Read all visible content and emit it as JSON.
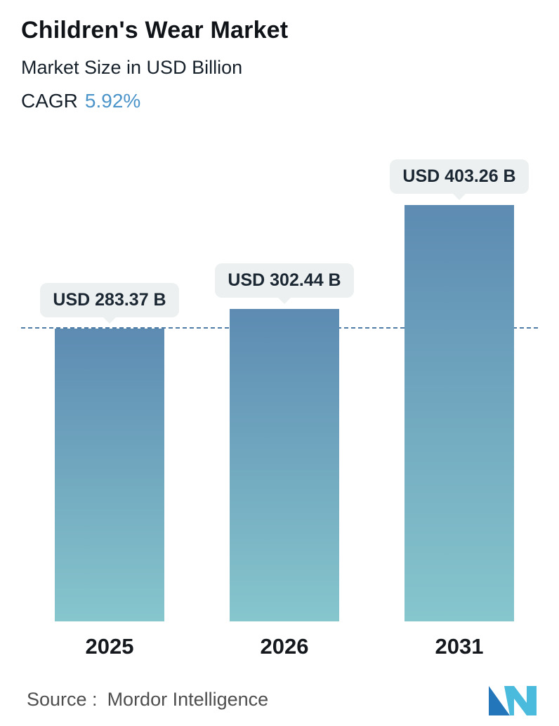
{
  "header": {
    "title": "Children's Wear Market",
    "subtitle": "Market Size in USD Billion",
    "cagr_label": "CAGR",
    "cagr_value": "5.92%"
  },
  "chart_data": {
    "type": "bar",
    "categories": [
      "2025",
      "2026",
      "2031"
    ],
    "values": [
      283.37,
      302.44,
      403.26
    ],
    "value_labels": [
      "USD 283.37 B",
      "USD 302.44 B",
      "USD 403.26 B"
    ],
    "unit": "USD Billion",
    "title": "Children's Wear Market",
    "subtitle": "Market Size in USD Billion",
    "ylim": [
      0,
      403.26
    ],
    "grid": false,
    "legend": "none",
    "reference_line_value": 283.37
  },
  "footer": {
    "source_label": "Source :",
    "source_value": "Mordor Intelligence"
  },
  "colors": {
    "bar_gradient_top": "#5d8bb2",
    "bar_gradient_bottom": "#86c6cd",
    "reference_line": "#4f7ca6",
    "cagr_value": "#4b94c9",
    "badge_background": "#edf0f0",
    "badge_text": "#1b2733",
    "logo_dark": "#2276b9",
    "logo_light": "#4bbbdd"
  },
  "icons": {
    "logo": "mordor-intelligence-logo"
  }
}
